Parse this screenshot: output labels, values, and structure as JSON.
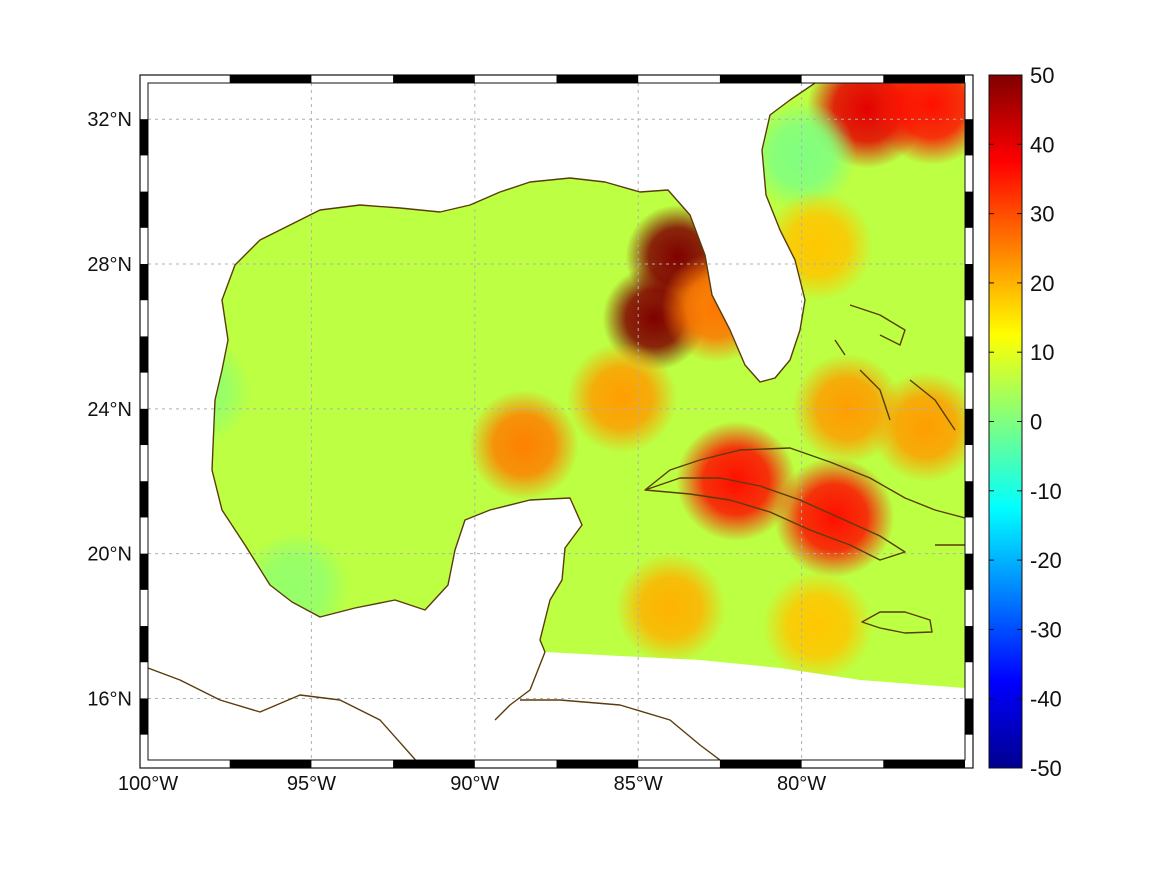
{
  "chart_data": {
    "type": "heatmap",
    "title": "",
    "xlabel": "",
    "ylabel": "",
    "xlim": [
      -100,
      -75
    ],
    "ylim": [
      14.3,
      33
    ],
    "x_ticks": [
      {
        "value": -100,
        "label": "100°W"
      },
      {
        "value": -95,
        "label": "95°W"
      },
      {
        "value": -90,
        "label": "90°W"
      },
      {
        "value": -85,
        "label": "85°W"
      },
      {
        "value": -80,
        "label": "80°W"
      }
    ],
    "y_ticks": [
      {
        "value": 32,
        "label": "32°N"
      },
      {
        "value": 28,
        "label": "28°N"
      },
      {
        "value": 24,
        "label": "24°N"
      },
      {
        "value": 20,
        "label": "20°N"
      },
      {
        "value": 16,
        "label": "16°N"
      }
    ],
    "grid": true,
    "colormap": "jet",
    "colorbar": {
      "range": [
        -50,
        50
      ],
      "placement": "right",
      "ticks": [
        {
          "value": 50,
          "label": "50"
        },
        {
          "value": 40,
          "label": "40"
        },
        {
          "value": 30,
          "label": "30"
        },
        {
          "value": 20,
          "label": "20"
        },
        {
          "value": 10,
          "label": "10"
        },
        {
          "value": 0,
          "label": "0"
        },
        {
          "value": -10,
          "label": "-10"
        },
        {
          "value": -20,
          "label": "-20"
        },
        {
          "value": -30,
          "label": "-30"
        },
        {
          "value": -40,
          "label": "-40"
        },
        {
          "value": -50,
          "label": "-50"
        }
      ]
    },
    "field": {
      "background_value": 6,
      "features": [
        {
          "lon": -84.5,
          "lat": 26.5,
          "value": 50
        },
        {
          "lon": -83.8,
          "lat": 28.2,
          "value": 50
        },
        {
          "lon": -82.6,
          "lat": 26.8,
          "value": 26
        },
        {
          "lon": -82.0,
          "lat": 22.0,
          "value": 36
        },
        {
          "lon": -79.0,
          "lat": 21.0,
          "value": 36
        },
        {
          "lon": -85.5,
          "lat": 24.3,
          "value": 22
        },
        {
          "lon": -88.5,
          "lat": 23.0,
          "value": 25
        },
        {
          "lon": -84.0,
          "lat": 18.5,
          "value": 20
        },
        {
          "lon": -79.5,
          "lat": 18.0,
          "value": 18
        },
        {
          "lon": -78.0,
          "lat": 32.3,
          "value": 40
        },
        {
          "lon": -76.0,
          "lat": 32.4,
          "value": 36
        },
        {
          "lon": -80.0,
          "lat": 31.0,
          "value": 0
        },
        {
          "lon": -98.5,
          "lat": 24.5,
          "value": 2
        },
        {
          "lon": -95.5,
          "lat": 19.1,
          "value": 2
        },
        {
          "lon": -78.6,
          "lat": 24.0,
          "value": 22
        },
        {
          "lon": -76.2,
          "lat": 23.5,
          "value": 22
        },
        {
          "lon": -79.5,
          "lat": 28.5,
          "value": 18
        }
      ]
    },
    "land_color": "#ffffff",
    "coastline_color": "#5a3c0a"
  }
}
